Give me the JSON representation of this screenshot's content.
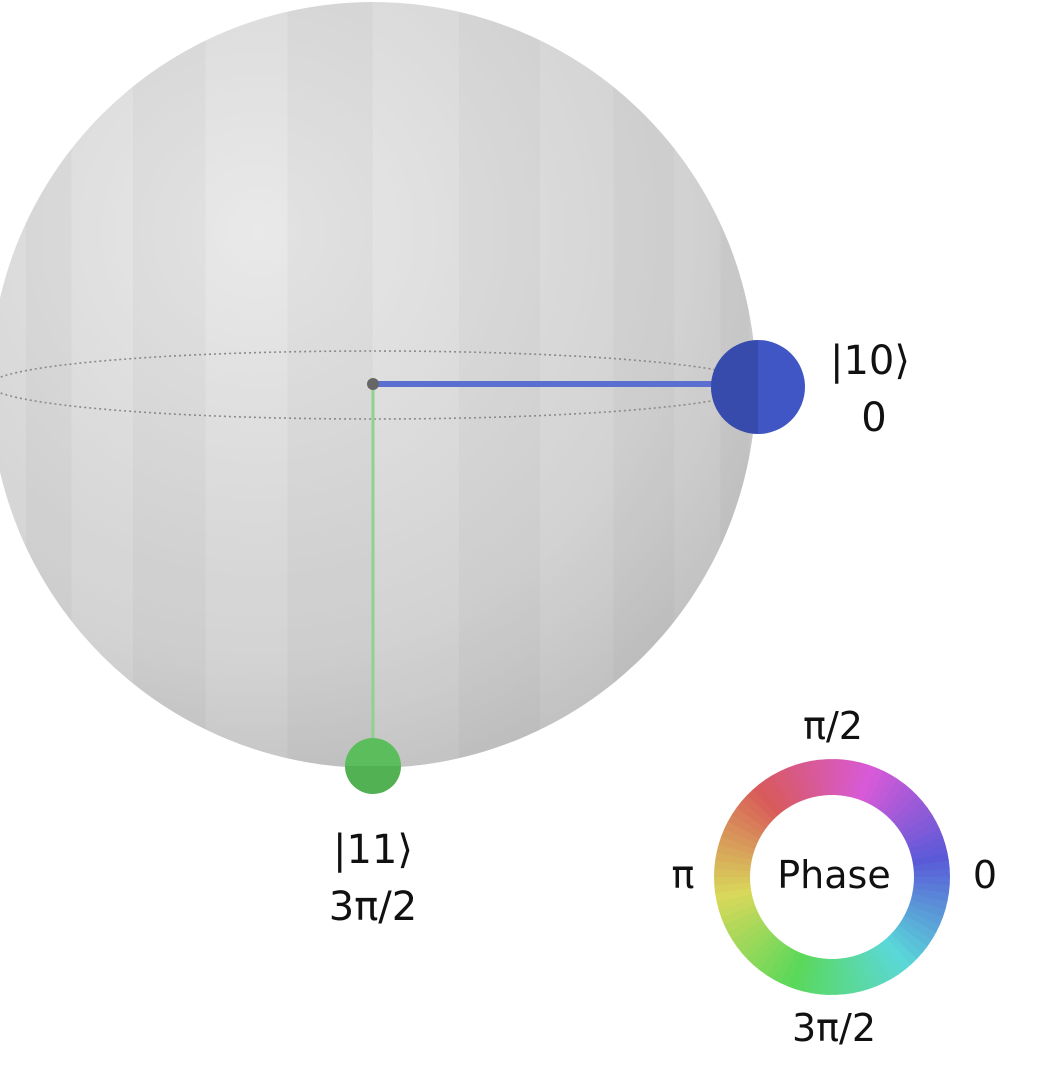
{
  "sphere": {
    "fill_light": "#e6e6e6",
    "fill_dark": "#bdbdbd",
    "equator_color": "#8a8a8a"
  },
  "states": [
    {
      "ket": "|10⟩",
      "phase_label": "0",
      "color": "#3f56c4",
      "stem_color": "#5a6fd0"
    },
    {
      "ket": "|11⟩",
      "phase_label": "3π/2",
      "color": "#5cbd5c",
      "stem_color": "#8fd28f"
    }
  ],
  "phase_wheel": {
    "title": "Phase",
    "label_top": "π/2",
    "label_left": "π",
    "label_right": "0",
    "label_bottom": "3π/2"
  }
}
